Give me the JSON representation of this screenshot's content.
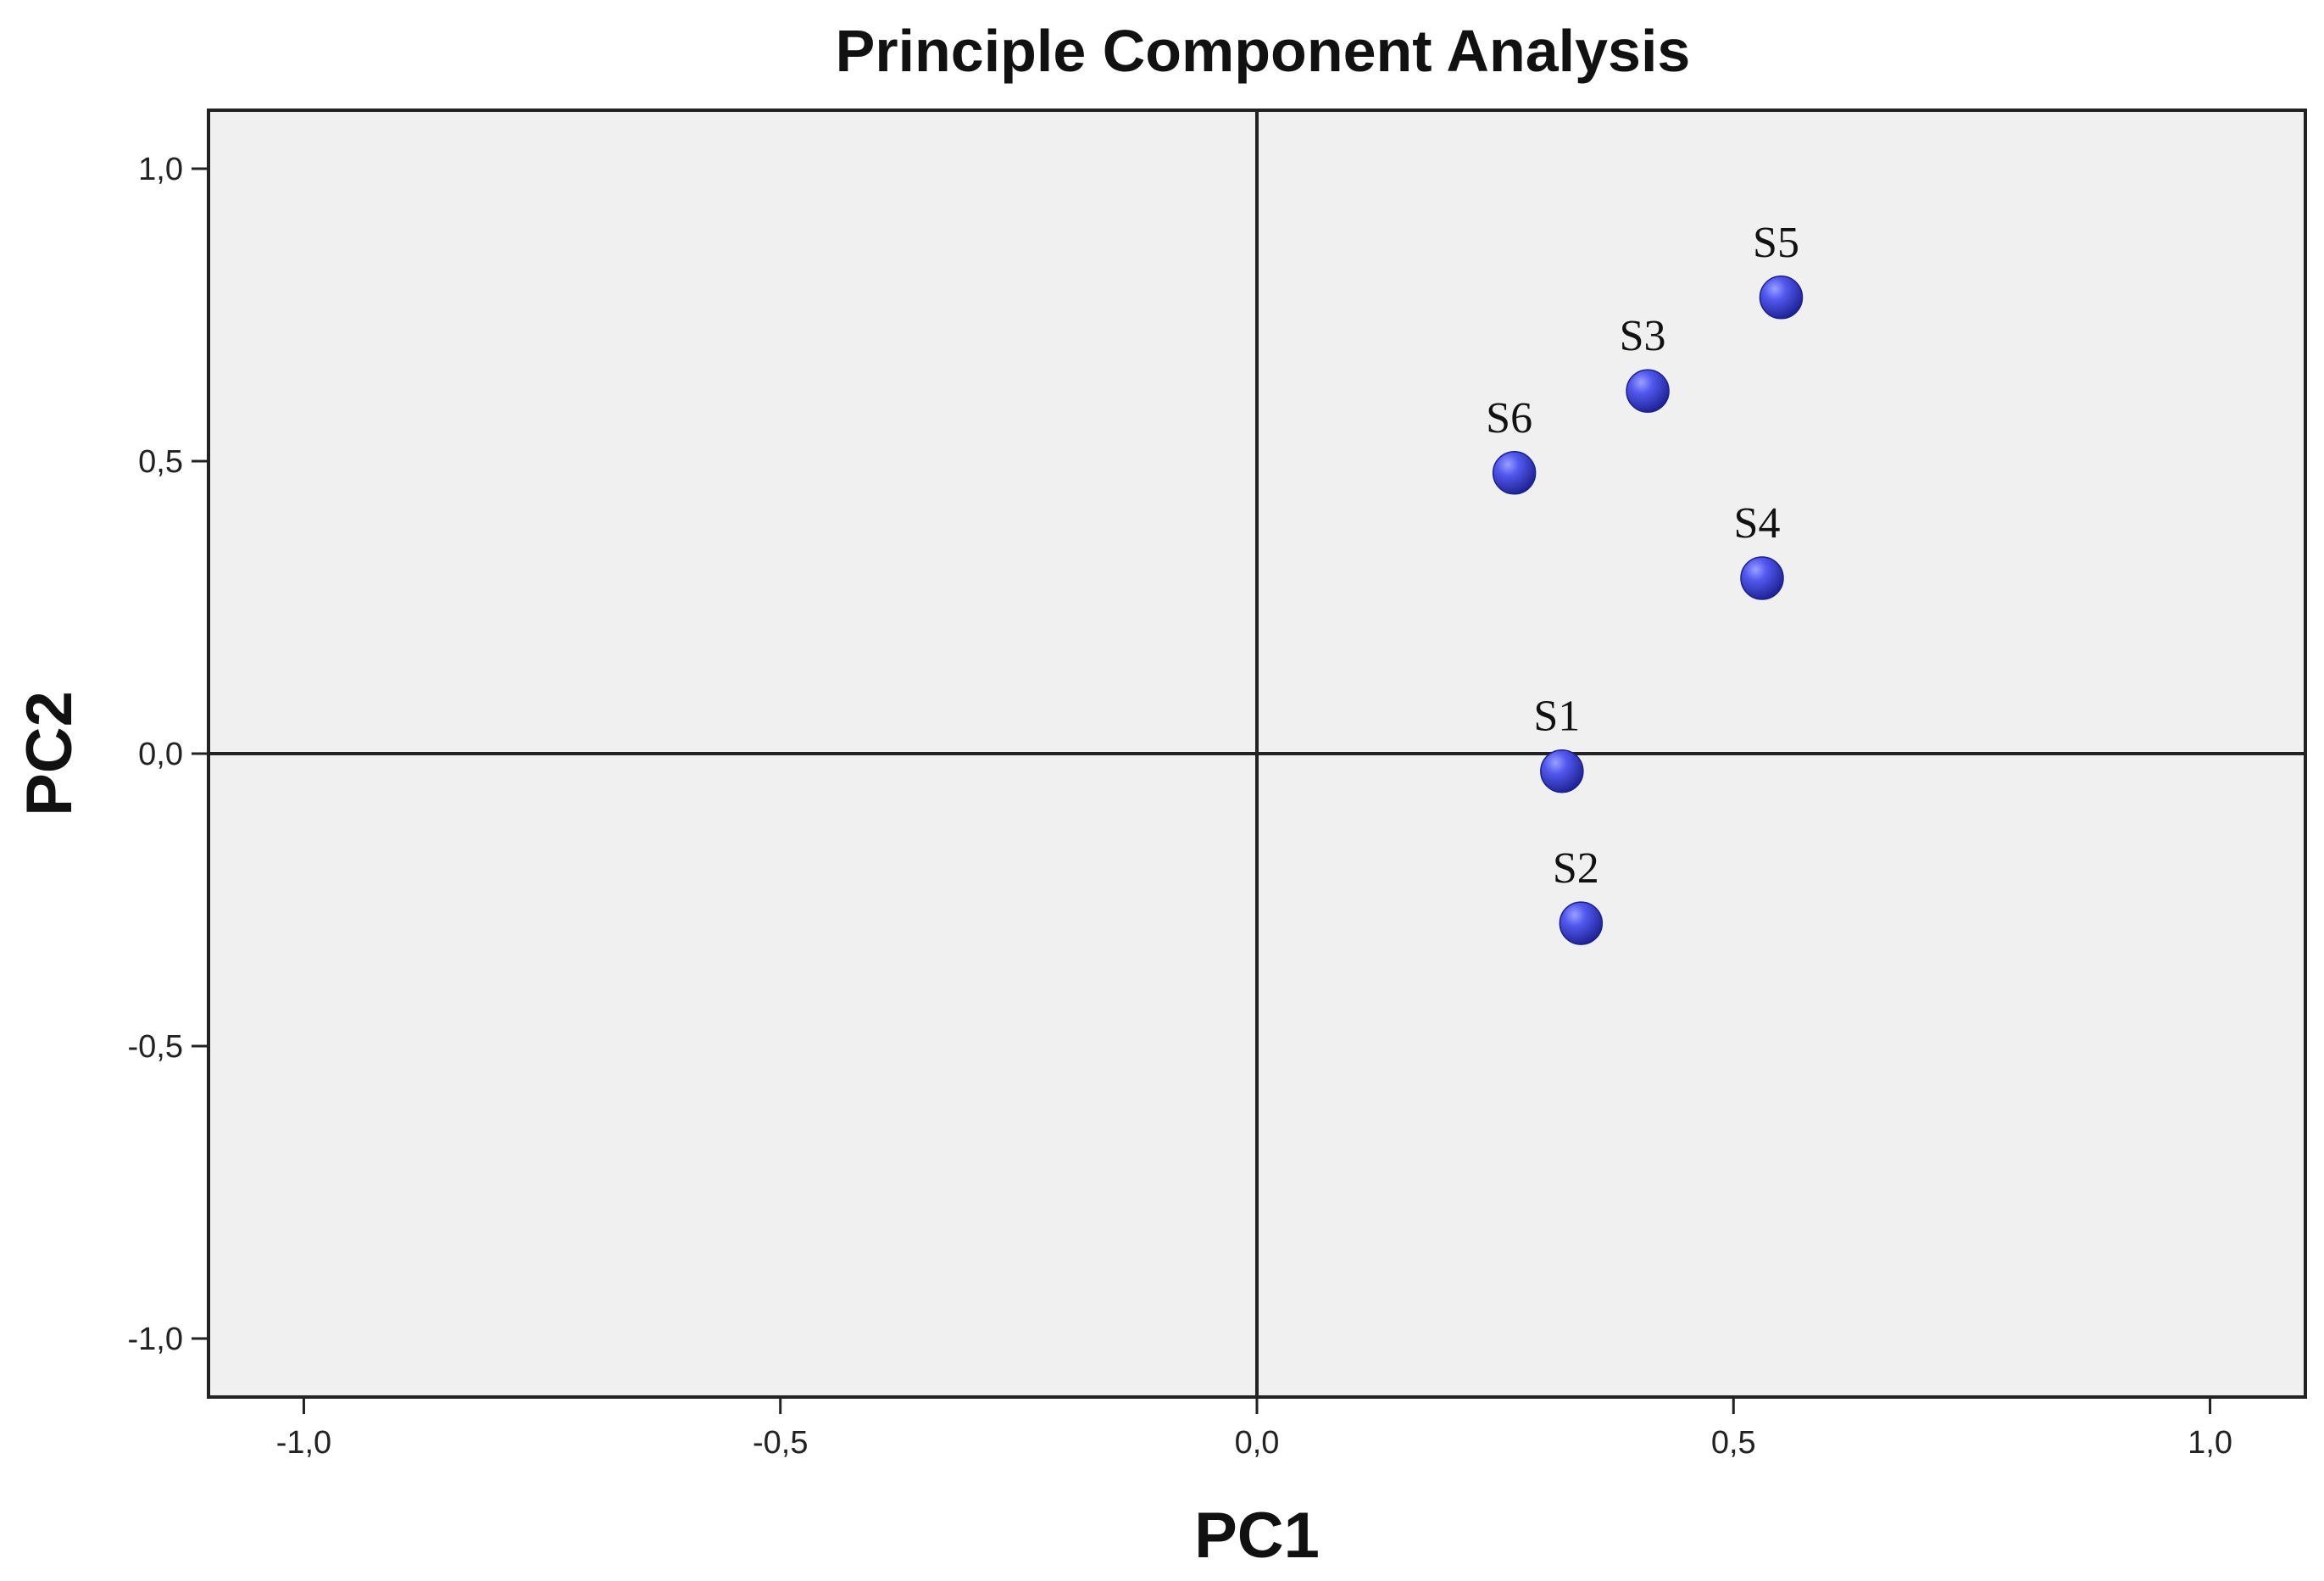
{
  "chart_data": {
    "type": "scatter",
    "title": "Principle Component Analysis",
    "xlabel": "PC1",
    "ylabel": "PC2",
    "xlim": [
      -1.1,
      1.1
    ],
    "ylim": [
      -1.1,
      1.1
    ],
    "x_ticks": [
      -1.0,
      -0.5,
      0.0,
      0.5,
      1.0
    ],
    "x_tick_labels": [
      "-1,0",
      "-0,5",
      "0,0",
      "0,5",
      "1,0"
    ],
    "y_ticks": [
      1.0,
      0.5,
      0.0,
      -0.5,
      -1.0
    ],
    "y_tick_labels": [
      "1,0",
      "0,5",
      "0,0",
      "-0,5",
      "-1,0"
    ],
    "grid": false,
    "reference_lines": {
      "x": 0,
      "y": 0
    },
    "background_color": "#f0f0f0",
    "marker_color": "#3a3fd6",
    "points": [
      {
        "label": "S1",
        "x": 0.32,
        "y": -0.03
      },
      {
        "label": "S2",
        "x": 0.34,
        "y": -0.29
      },
      {
        "label": "S3",
        "x": 0.41,
        "y": 0.62
      },
      {
        "label": "S4",
        "x": 0.53,
        "y": 0.3
      },
      {
        "label": "S5",
        "x": 0.55,
        "y": 0.78
      },
      {
        "label": "S6",
        "x": 0.27,
        "y": 0.48
      }
    ]
  }
}
